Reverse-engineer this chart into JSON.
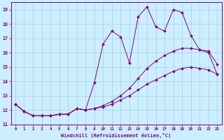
{
  "xlabel": "Windchill (Refroidissement éolien,°C)",
  "background_color": "#cceeff",
  "line_color": "#800080",
  "x_values": [
    0,
    1,
    2,
    3,
    4,
    5,
    6,
    7,
    8,
    9,
    10,
    11,
    12,
    13,
    14,
    15,
    16,
    17,
    18,
    19,
    20,
    21,
    22,
    23
  ],
  "line1": [
    12.4,
    11.9,
    11.6,
    11.6,
    11.6,
    11.7,
    11.7,
    12.1,
    12.0,
    13.9,
    16.6,
    17.5,
    17.1,
    15.3,
    18.5,
    19.2,
    17.8,
    17.5,
    19.0,
    18.8,
    17.2,
    16.2,
    16.1,
    15.2
  ],
  "line2": [
    12.4,
    11.9,
    11.6,
    11.6,
    11.6,
    11.7,
    11.7,
    12.1,
    12.0,
    12.1,
    12.3,
    12.6,
    13.0,
    13.5,
    14.2,
    14.9,
    15.4,
    15.8,
    16.1,
    16.3,
    16.3,
    16.2,
    16.0,
    14.5
  ],
  "line3": [
    12.4,
    11.9,
    11.6,
    11.6,
    11.6,
    11.7,
    11.7,
    12.1,
    12.0,
    12.1,
    12.2,
    12.4,
    12.7,
    13.0,
    13.4,
    13.8,
    14.1,
    14.4,
    14.7,
    14.9,
    15.0,
    14.9,
    14.8,
    14.5
  ],
  "ylim": [
    11,
    19.5
  ],
  "yticks": [
    11,
    12,
    13,
    14,
    15,
    16,
    17,
    18,
    19
  ],
  "xlim": [
    -0.5,
    23.5
  ]
}
